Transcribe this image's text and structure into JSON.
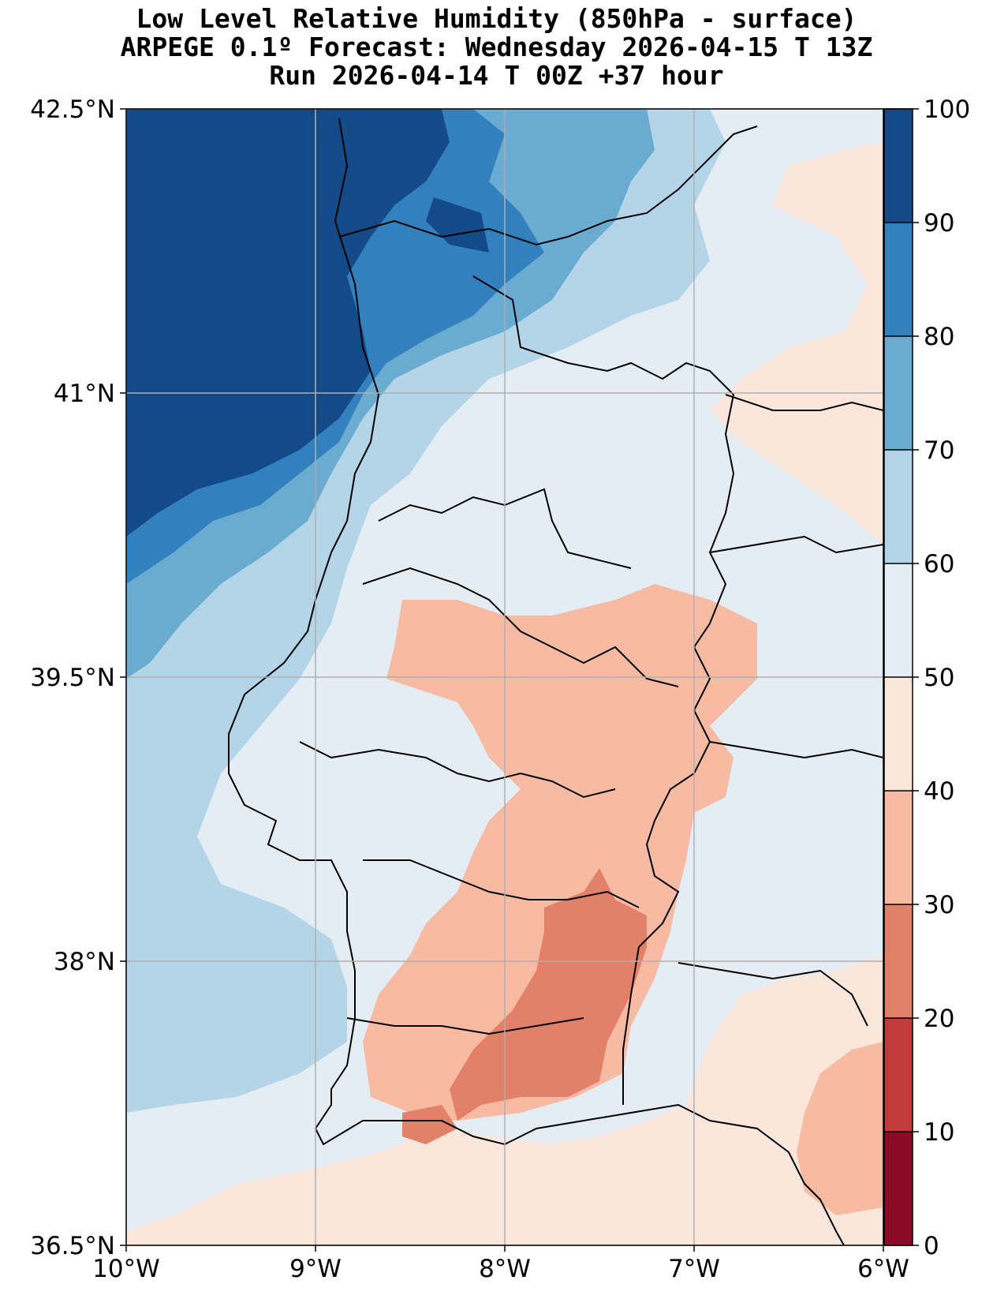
{
  "title": {
    "line1": "Low Level Relative Humidity (850hPa - surface)",
    "line2": "ARPEGE 0.1º Forecast: Wednesday 2026-04-15 T 13Z",
    "line3": "Run 2026-04-14 T 00Z +37 hour"
  },
  "map": {
    "lon_range": [
      -10,
      -6
    ],
    "lat_range": [
      36.5,
      42.5
    ],
    "grid": true,
    "x_ticks": [
      {
        "lon": -10,
        "label": "10°W"
      },
      {
        "lon": -9,
        "label": "9°W"
      },
      {
        "lon": -8,
        "label": "8°W"
      },
      {
        "lon": -7,
        "label": "7°W"
      },
      {
        "lon": -6,
        "label": "6°W"
      }
    ],
    "y_ticks": [
      {
        "lat": 42.5,
        "label": "42.5°N"
      },
      {
        "lat": 41,
        "label": "41°N"
      },
      {
        "lat": 39.5,
        "label": "39.5°N"
      },
      {
        "lat": 38,
        "label": "38°N"
      },
      {
        "lat": 36.5,
        "label": "36.5°N"
      }
    ]
  },
  "colorbar": {
    "ticks": [
      "0",
      "10",
      "20",
      "30",
      "40",
      "50",
      "60",
      "70",
      "80",
      "90",
      "100"
    ],
    "levels": [
      {
        "from": 0,
        "to": 10,
        "color": "#8b0a26"
      },
      {
        "from": 10,
        "to": 20,
        "color": "#c23b3b"
      },
      {
        "from": 20,
        "to": 30,
        "color": "#e3806a"
      },
      {
        "from": 30,
        "to": 40,
        "color": "#f6bba2"
      },
      {
        "from": 40,
        "to": 50,
        "color": "#fbe6dc"
      },
      {
        "from": 50,
        "to": 60,
        "color": "#e4edf4"
      },
      {
        "from": 60,
        "to": 70,
        "color": "#b3d5e7"
      },
      {
        "from": 70,
        "to": 80,
        "color": "#6aabd1"
      },
      {
        "from": 80,
        "to": 90,
        "color": "#3280bd"
      },
      {
        "from": 90,
        "to": 100,
        "color": "#144a87"
      }
    ]
  }
}
